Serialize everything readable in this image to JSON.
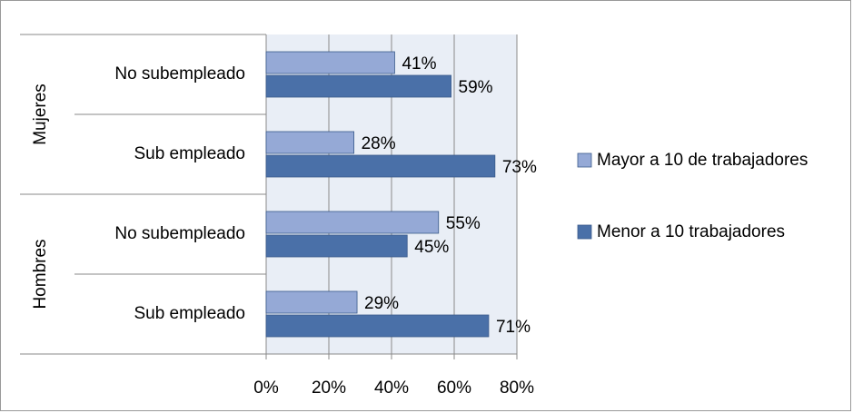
{
  "chart_data": {
    "type": "bar",
    "orientation": "horizontal",
    "groups": [
      {
        "label": "Mujeres",
        "categories": [
          "No subempleado",
          "Sub empleado"
        ]
      },
      {
        "label": "Hombres",
        "categories": [
          "No subempleado",
          "Sub empleado"
        ]
      }
    ],
    "series": [
      {
        "name": "Mayor a 10 de trabajadores",
        "color": "#95a9d6",
        "values": [
          41,
          28,
          55,
          29
        ],
        "value_labels": [
          "41%",
          "28%",
          "55%",
          "29%"
        ]
      },
      {
        "name": "Menor a 10 trabajadores",
        "color": "#4a70a8",
        "values": [
          59,
          73,
          45,
          71
        ],
        "value_labels": [
          "59%",
          "73%",
          "45%",
          "71%"
        ]
      }
    ],
    "xlim": [
      0,
      80
    ],
    "xticks": [
      {
        "value": 0,
        "label": "0%"
      },
      {
        "value": 20,
        "label": "20%"
      },
      {
        "value": 40,
        "label": "40%"
      },
      {
        "value": 60,
        "label": "60%"
      },
      {
        "value": 80,
        "label": "80%"
      }
    ],
    "grid": true,
    "legend": "right"
  }
}
